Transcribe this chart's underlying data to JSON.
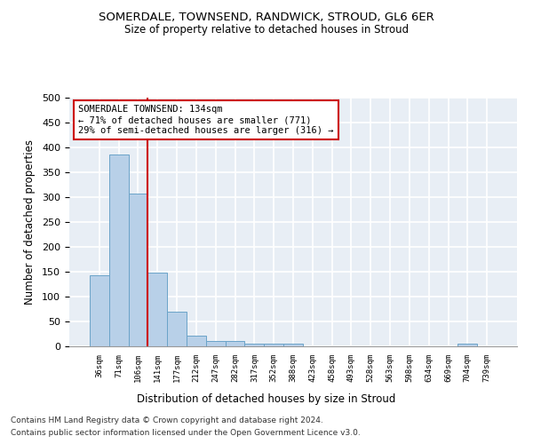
{
  "title": "SOMERDALE, TOWNSEND, RANDWICK, STROUD, GL6 6ER",
  "subtitle": "Size of property relative to detached houses in Stroud",
  "xlabel": "Distribution of detached houses by size in Stroud",
  "ylabel": "Number of detached properties",
  "bin_labels": [
    "36sqm",
    "71sqm",
    "106sqm",
    "141sqm",
    "177sqm",
    "212sqm",
    "247sqm",
    "282sqm",
    "317sqm",
    "352sqm",
    "388sqm",
    "423sqm",
    "458sqm",
    "493sqm",
    "528sqm",
    "563sqm",
    "598sqm",
    "634sqm",
    "669sqm",
    "704sqm",
    "739sqm"
  ],
  "bar_values": [
    143,
    385,
    308,
    149,
    70,
    22,
    10,
    10,
    5,
    5,
    5,
    0,
    0,
    0,
    0,
    0,
    0,
    0,
    0,
    5,
    0
  ],
  "bar_color": "#b8d0e8",
  "bar_edge_color": "#6aa3c8",
  "vline_x_index": 3,
  "vline_color": "#cc0000",
  "annotation_text": "SOMERDALE TOWNSEND: 134sqm\n← 71% of detached houses are smaller (771)\n29% of semi-detached houses are larger (316) →",
  "annotation_box_color": "#ffffff",
  "annotation_box_edge_color": "#cc0000",
  "ylim": [
    0,
    500
  ],
  "yticks": [
    0,
    50,
    100,
    150,
    200,
    250,
    300,
    350,
    400,
    450,
    500
  ],
  "background_color": "#e8eef5",
  "grid_color": "#ffffff",
  "footer_line1": "Contains HM Land Registry data © Crown copyright and database right 2024.",
  "footer_line2": "Contains public sector information licensed under the Open Government Licence v3.0."
}
